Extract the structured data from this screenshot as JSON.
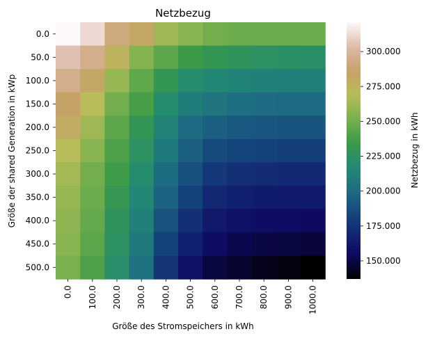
{
  "chart_data": {
    "type": "heatmap",
    "title": "Netzbezug",
    "xlabel": "Größe des Stromspeichers in kWh",
    "ylabel": "Größe der shared Generation in kWp",
    "x_categories": [
      "0.0",
      "100.0",
      "200.0",
      "300.0",
      "400.0",
      "500.0",
      "600.0",
      "700.0",
      "800.0",
      "900.0",
      "1000.0"
    ],
    "y_categories": [
      "0.0",
      "50.0",
      "100.0",
      "150.0",
      "200.0",
      "250.0",
      "300.0",
      "350.0",
      "400.0",
      "450.0",
      "500.0"
    ],
    "values": [
      [
        321000,
        312000,
        292000,
        282000,
        262000,
        256000,
        250000,
        248000,
        248000,
        248000,
        248000
      ],
      [
        305000,
        295000,
        275000,
        255000,
        244000,
        235000,
        230000,
        227000,
        225000,
        224000,
        223000
      ],
      [
        295000,
        282000,
        260000,
        245000,
        230000,
        220000,
        216000,
        213000,
        212000,
        211000,
        211000
      ],
      [
        285000,
        270000,
        250000,
        238000,
        220000,
        210000,
        205000,
        202000,
        200000,
        199000,
        199000
      ],
      [
        280000,
        262000,
        244000,
        229000,
        214000,
        200000,
        195000,
        192000,
        191000,
        190000,
        190000
      ],
      [
        270000,
        256000,
        240000,
        225000,
        208000,
        195000,
        186000,
        183000,
        182000,
        181000,
        181000
      ],
      [
        264000,
        250000,
        236000,
        220000,
        201000,
        188000,
        178000,
        174000,
        172000,
        171000,
        171000
      ],
      [
        260000,
        248000,
        231000,
        216000,
        196000,
        182000,
        170000,
        166000,
        164000,
        163000,
        163000
      ],
      [
        258000,
        246000,
        227000,
        212000,
        189000,
        174000,
        163000,
        159000,
        157000,
        156000,
        155000
      ],
      [
        256000,
        244000,
        225000,
        208000,
        182000,
        166000,
        156000,
        152000,
        150000,
        149000,
        148000
      ],
      [
        252000,
        240000,
        222000,
        203000,
        177000,
        159000,
        149000,
        146000,
        142000,
        140000,
        137000
      ]
    ],
    "colormap": "gist_earth (reversed)",
    "colorbar": {
      "label": "Netzbezug in kWh",
      "ticks": [
        "150.000",
        "175.000",
        "200.000",
        "225.000",
        "250.000",
        "275.000",
        "300.000"
      ],
      "tick_values": [
        150000,
        175000,
        200000,
        225000,
        250000,
        275000,
        300000
      ],
      "vmin": 137000,
      "vmax": 321000
    }
  }
}
